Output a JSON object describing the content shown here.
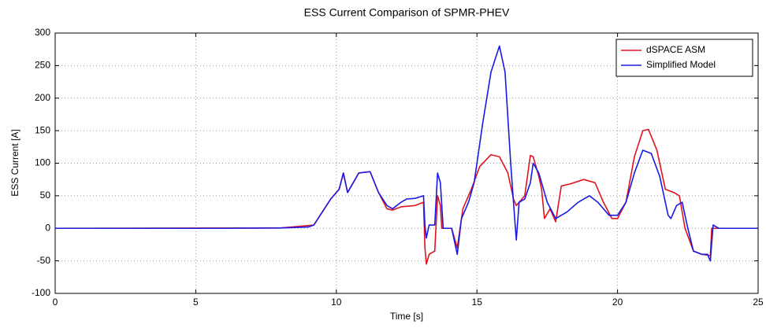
{
  "chart_data": {
    "type": "line",
    "title": "ESS Current Comparison of SPMR-PHEV",
    "xlabel": "Time [s]",
    "ylabel": "ESS Current [A]",
    "xlim": [
      0,
      25
    ],
    "xticks": [
      0,
      5,
      10,
      15,
      20,
      25
    ],
    "ylim": [
      -100,
      300
    ],
    "yticks": [
      -100,
      -50,
      0,
      50,
      100,
      150,
      200,
      250,
      300
    ],
    "grid": true,
    "legend": "upper right",
    "series": [
      {
        "name": "dSPACE ASM",
        "color": "#e0141e",
        "x": [
          0,
          8,
          9.2,
          9.5,
          9.8,
          10.1,
          10.25,
          10.4,
          10.6,
          10.8,
          11.2,
          11.5,
          11.8,
          12,
          12.3,
          12.8,
          13.1,
          13.15,
          13.2,
          13.3,
          13.5,
          13.6,
          13.7,
          13.75,
          14.1,
          14.3,
          14.5,
          14.8,
          15.1,
          15.5,
          15.8,
          16.1,
          16.3,
          16.4,
          16.7,
          16.9,
          17,
          17.2,
          17.3,
          17.4,
          17.6,
          17.8,
          18,
          18.3,
          18.8,
          19.2,
          19.5,
          19.8,
          20,
          20.3,
          20.6,
          20.9,
          21.1,
          21.4,
          21.7,
          22,
          22.2,
          22.4,
          22.7,
          23,
          23.3,
          23.35,
          23.5,
          25
        ],
        "values": [
          0,
          0.5,
          5,
          25,
          45,
          60,
          85,
          55,
          70,
          85,
          87,
          55,
          30,
          28,
          33,
          35,
          40,
          -30,
          -55,
          -40,
          -35,
          50,
          35,
          0,
          0,
          -30,
          30,
          60,
          95,
          113,
          110,
          85,
          45,
          35,
          50,
          112,
          110,
          80,
          60,
          15,
          30,
          10,
          65,
          68,
          75,
          70,
          40,
          15,
          15,
          40,
          110,
          150,
          152,
          120,
          60,
          55,
          50,
          0,
          -35,
          -40,
          -42,
          0,
          0,
          0
        ]
      },
      {
        "name": "Simplified Model",
        "color": "#1a1ae6",
        "x": [
          0,
          6,
          8,
          9,
          9.2,
          9.5,
          9.8,
          10.1,
          10.25,
          10.4,
          10.6,
          10.8,
          11.2,
          11.5,
          11.8,
          12,
          12.3,
          12.5,
          12.8,
          13.1,
          13.15,
          13.2,
          13.3,
          13.5,
          13.6,
          13.7,
          13.8,
          14.1,
          14.3,
          14.45,
          14.7,
          14.9,
          15,
          15.2,
          15.5,
          15.8,
          16,
          16.2,
          16.3,
          16.4,
          16.5,
          16.7,
          16.9,
          17,
          17.2,
          17.5,
          17.8,
          18.2,
          18.6,
          19,
          19.3,
          19.7,
          20,
          20.3,
          20.6,
          20.9,
          21.2,
          21.5,
          21.8,
          21.9,
          22.1,
          22.3,
          22.5,
          22.7,
          23,
          23.2,
          23.3,
          23.4,
          23.6,
          25
        ],
        "values": [
          0,
          0,
          0.5,
          2,
          5,
          25,
          45,
          60,
          85,
          55,
          70,
          85,
          87,
          55,
          35,
          30,
          40,
          45,
          46,
          50,
          5,
          -15,
          5,
          5,
          85,
          70,
          0,
          0,
          -40,
          15,
          40,
          70,
          100,
          160,
          240,
          280,
          240,
          100,
          40,
          -18,
          40,
          45,
          70,
          100,
          85,
          40,
          15,
          25,
          40,
          50,
          40,
          20,
          20,
          40,
          85,
          120,
          115,
          80,
          20,
          15,
          35,
          40,
          0,
          -35,
          -40,
          -40,
          -50,
          5,
          0,
          0
        ]
      }
    ]
  }
}
